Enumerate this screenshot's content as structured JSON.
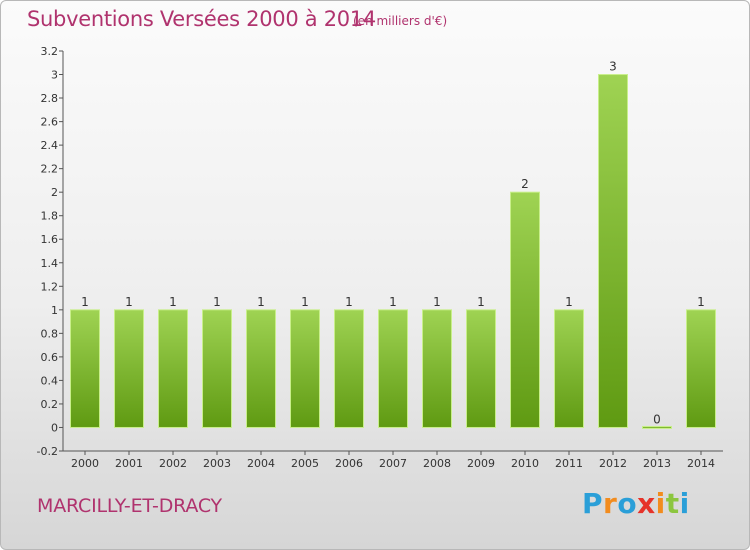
{
  "title": "Subventions Versées 2000 à 2014",
  "subtitle": "(en milliers d'€)",
  "commune": "MARCILLY-ET-DRACY",
  "logo": {
    "text": "Proxiti",
    "letters": [
      "P",
      "r",
      "o",
      "x",
      "i",
      "t",
      "i"
    ],
    "colors": [
      "#2a9fd8",
      "#f28c1e",
      "#2a9fd8",
      "#e6332a",
      "#f28c1e",
      "#8cc63f",
      "#2a9fd8"
    ]
  },
  "colors": {
    "title": "#b0336e",
    "bar_top": "#9fd353",
    "bar_bottom": "#5f9a12",
    "bar_edge": "#c8ef8a"
  },
  "chart_data": {
    "type": "bar",
    "categories": [
      "2000",
      "2001",
      "2002",
      "2003",
      "2004",
      "2005",
      "2006",
      "2007",
      "2008",
      "2009",
      "2010",
      "2011",
      "2012",
      "2013",
      "2014"
    ],
    "values": [
      1,
      1,
      1,
      1,
      1,
      1,
      1,
      1,
      1,
      1,
      2,
      1,
      3,
      0,
      1
    ],
    "data_labels": [
      "1",
      "1",
      "1",
      "1",
      "1",
      "1",
      "1",
      "1",
      "1",
      "1",
      "2",
      "1",
      "3",
      "0",
      "1"
    ],
    "y_ticks": [
      "-0.2",
      "0",
      "0.2",
      "0.4",
      "0.6",
      "0.8",
      "1",
      "1.2",
      "1.4",
      "1.6",
      "1.8",
      "2",
      "2.2",
      "2.4",
      "2.6",
      "2.8",
      "3",
      "3.2"
    ],
    "ylim": [
      -0.2,
      3.2
    ],
    "grid": false,
    "legend": "none"
  }
}
